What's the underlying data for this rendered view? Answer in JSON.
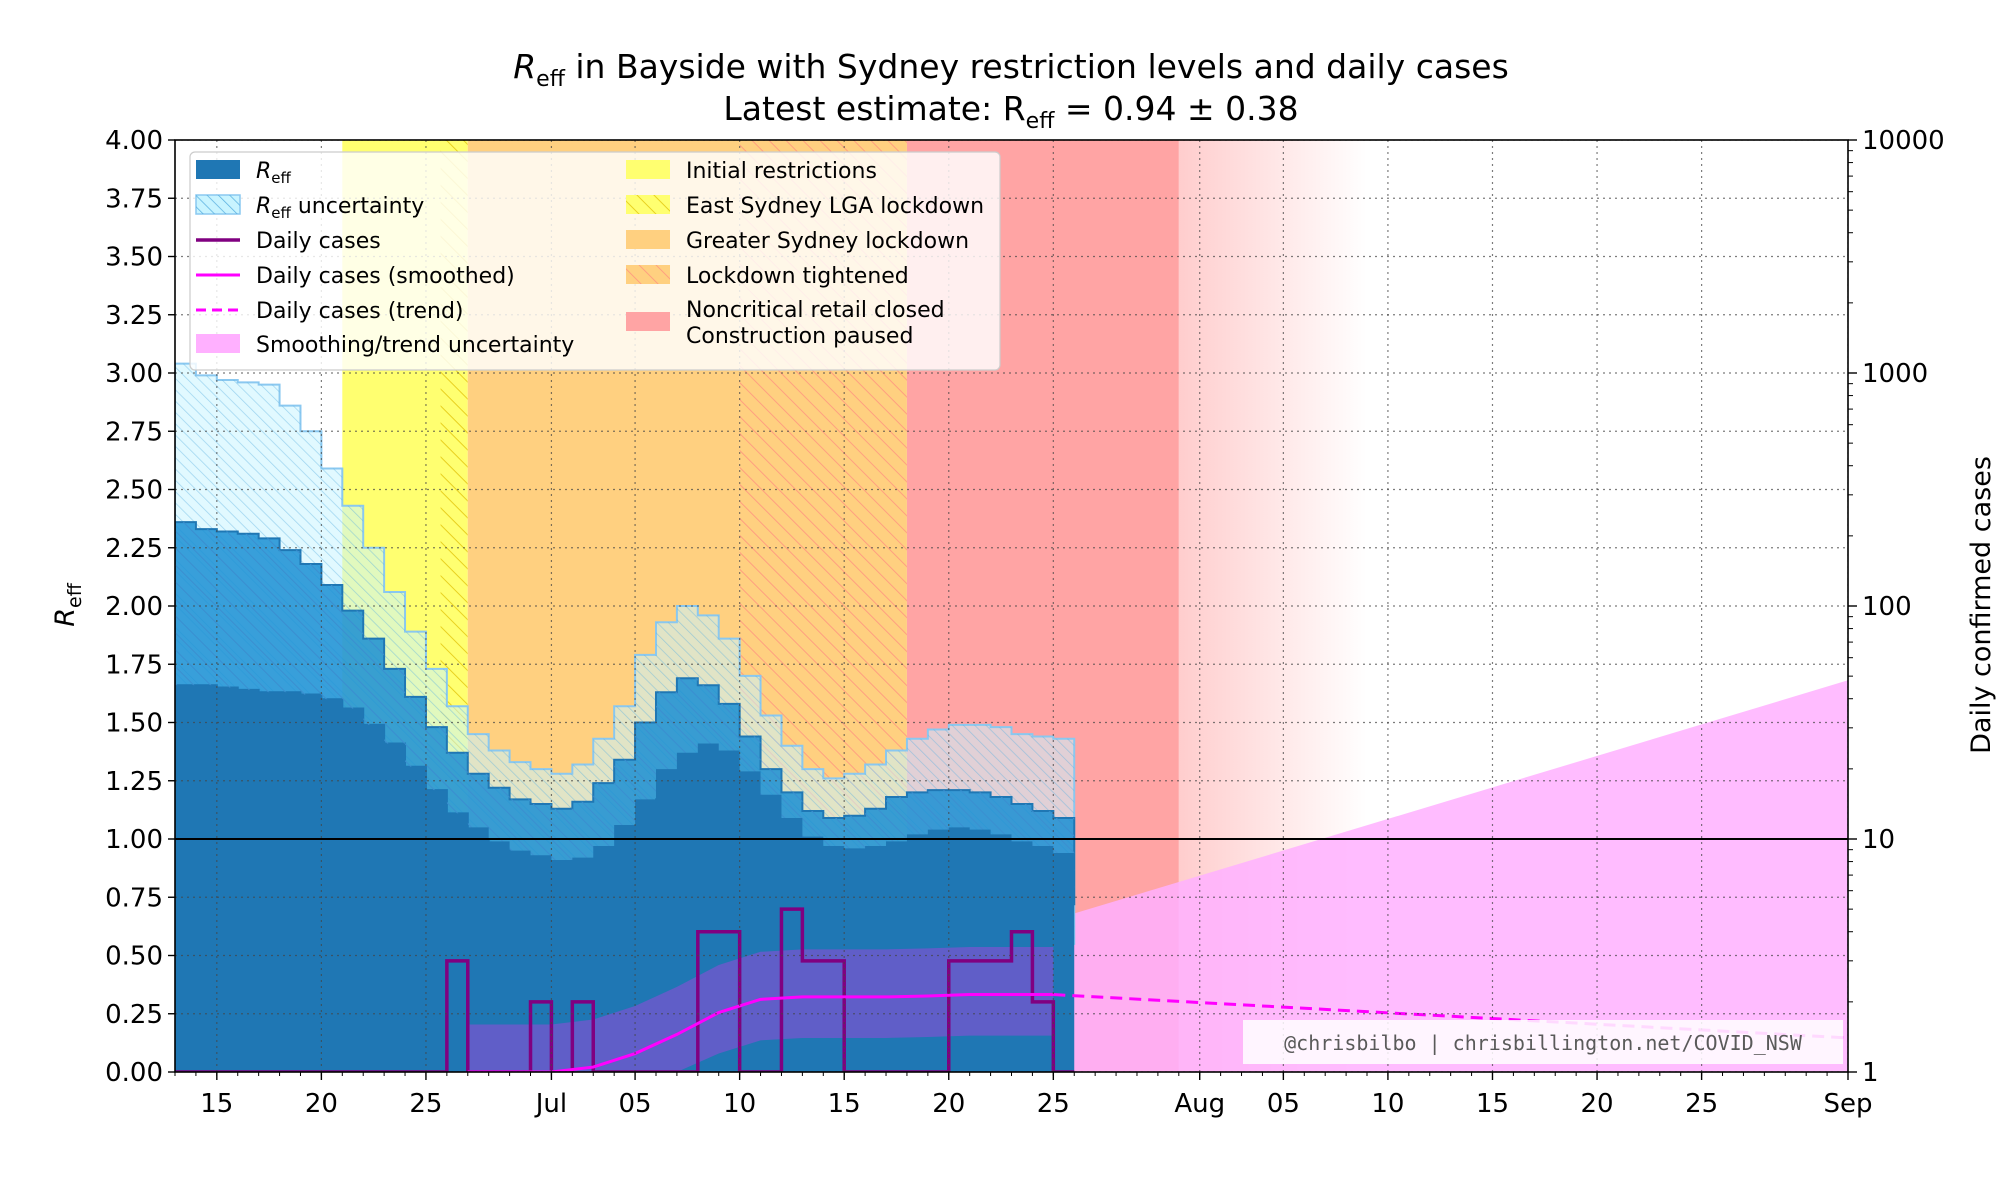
{
  "chart_data": {
    "type": "area",
    "title_line1_pre": "R",
    "title_line1_sub": "eff",
    "title_line1_post": " in Bayside with Sydney restriction levels and daily cases",
    "title_line2_pre": "Latest estimate: R",
    "title_line2_sub": "eff",
    "title_line2_post": " = 0.94 ± 0.38",
    "ylabel_left_main": "R",
    "ylabel_left_sub": "eff",
    "ylabel_right": "Daily confirmed cases",
    "x_start_day": 0,
    "x_end_day": 80,
    "x_ticks": [
      {
        "day": 2,
        "label": "15"
      },
      {
        "day": 7,
        "label": "20"
      },
      {
        "day": 12,
        "label": "25"
      },
      {
        "day": 18,
        "label": "Jul"
      },
      {
        "day": 22,
        "label": "05"
      },
      {
        "day": 27,
        "label": "10"
      },
      {
        "day": 32,
        "label": "15"
      },
      {
        "day": 37,
        "label": "20"
      },
      {
        "day": 42,
        "label": "25"
      },
      {
        "day": 49,
        "label": "Aug"
      },
      {
        "day": 53,
        "label": "05"
      },
      {
        "day": 58,
        "label": "10"
      },
      {
        "day": 63,
        "label": "15"
      },
      {
        "day": 68,
        "label": "20"
      },
      {
        "day": 73,
        "label": "25"
      },
      {
        "day": 80,
        "label": "Sep"
      }
    ],
    "ylim_left": [
      0,
      4
    ],
    "y_ticks_left": [
      "0.00",
      "0.25",
      "0.50",
      "0.75",
      "1.00",
      "1.25",
      "1.50",
      "1.75",
      "2.00",
      "2.25",
      "2.50",
      "2.75",
      "3.00",
      "3.25",
      "3.50",
      "3.75",
      "4.00"
    ],
    "y_ticks_right": [
      "1",
      "10",
      "100",
      "1000",
      "10000"
    ],
    "grid": true,
    "reference_line": 1.0,
    "restriction_periods": [
      {
        "name": "Initial restrictions",
        "start": 8,
        "end": 13.5,
        "color": "#ffff70",
        "hatched": false
      },
      {
        "name": "East Sydney LGA lockdown",
        "start": 12.7,
        "end": 14,
        "color": "#ffff70",
        "hatched": true
      },
      {
        "name": "Greater Sydney lockdown",
        "start": 14,
        "end": 27,
        "color": "#ffd080",
        "hatched": false
      },
      {
        "name": "Lockdown tightened",
        "start": 27,
        "end": 35,
        "color": "#ffd080",
        "hatched": true
      },
      {
        "name": "Noncritical retail closed",
        "start": 35,
        "end": 48,
        "color": "#ffa4a4",
        "hatched": false
      }
    ],
    "restriction_fade": {
      "start": 48,
      "end": 57
    },
    "reff_series": {
      "days": [
        0,
        1,
        2,
        3,
        4,
        5,
        6,
        7,
        8,
        9,
        10,
        11,
        12,
        13,
        14,
        15,
        16,
        17,
        18,
        19,
        20,
        21,
        22,
        23,
        24,
        25,
        26,
        27,
        28,
        29,
        30,
        31,
        32,
        33,
        34,
        35,
        36,
        37,
        38,
        39,
        40,
        41,
        42
      ],
      "mean": [
        1.66,
        1.66,
        1.65,
        1.64,
        1.63,
        1.63,
        1.62,
        1.6,
        1.56,
        1.49,
        1.41,
        1.31,
        1.21,
        1.11,
        1.05,
        0.99,
        0.95,
        0.93,
        0.91,
        0.92,
        0.97,
        1.06,
        1.17,
        1.3,
        1.37,
        1.41,
        1.38,
        1.29,
        1.19,
        1.09,
        1.01,
        0.97,
        0.96,
        0.97,
        0.99,
        1.02,
        1.04,
        1.05,
        1.04,
        1.02,
        0.99,
        0.97,
        0.94
      ],
      "lower_1sd": [
        1.66,
        1.66,
        1.65,
        1.64,
        1.63,
        1.63,
        1.62,
        1.6,
        1.56,
        1.49,
        1.41,
        1.31,
        1.21,
        1.11,
        1.0,
        0.95,
        0.9,
        0.87,
        0.84,
        0.83,
        0.86,
        0.92,
        1.04,
        1.17,
        1.25,
        1.28,
        1.24,
        1.14,
        1.02,
        0.93,
        0.85,
        0.82,
        0.8,
        0.81,
        0.82,
        0.84,
        0.85,
        0.86,
        0.85,
        0.83,
        0.81,
        0.77,
        0.72
      ],
      "upper_1sd": [
        2.36,
        2.33,
        2.32,
        2.31,
        2.29,
        2.24,
        2.18,
        2.09,
        1.98,
        1.86,
        1.73,
        1.61,
        1.48,
        1.37,
        1.28,
        1.22,
        1.17,
        1.15,
        1.13,
        1.16,
        1.24,
        1.34,
        1.5,
        1.63,
        1.69,
        1.66,
        1.58,
        1.44,
        1.3,
        1.2,
        1.12,
        1.09,
        1.1,
        1.13,
        1.18,
        1.2,
        1.21,
        1.21,
        1.2,
        1.18,
        1.15,
        1.12,
        1.09
      ],
      "upper_2sd": [
        3.04,
        2.99,
        2.97,
        2.96,
        2.95,
        2.86,
        2.75,
        2.59,
        2.43,
        2.25,
        2.06,
        1.89,
        1.73,
        1.57,
        1.45,
        1.38,
        1.33,
        1.3,
        1.28,
        1.32,
        1.43,
        1.57,
        1.79,
        1.93,
        2.0,
        1.96,
        1.86,
        1.7,
        1.53,
        1.4,
        1.3,
        1.26,
        1.28,
        1.32,
        1.38,
        1.43,
        1.47,
        1.49,
        1.49,
        1.48,
        1.45,
        1.44,
        1.43
      ],
      "lower_2sd": [
        1.66,
        1.66,
        1.65,
        1.64,
        1.63,
        1.63,
        1.62,
        1.6,
        1.56,
        1.49,
        1.41,
        1.31,
        1.21,
        1.11,
        1.0,
        0.95,
        0.9,
        0.87,
        0.84,
        0.83,
        0.86,
        0.92,
        1.04,
        1.17,
        1.25,
        1.28,
        1.24,
        1.14,
        1.02,
        0.93,
        0.85,
        0.82,
        0.8,
        0.81,
        0.82,
        0.84,
        0.85,
        0.86,
        0.85,
        0.83,
        0.81,
        0.77,
        0.55
      ]
    },
    "daily_cases": {
      "days": [
        0,
        1,
        2,
        3,
        4,
        5,
        6,
        7,
        8,
        9,
        10,
        11,
        12,
        13,
        14,
        15,
        16,
        17,
        18,
        19,
        20,
        21,
        22,
        23,
        24,
        25,
        26,
        27,
        28,
        29,
        30,
        31,
        32,
        33,
        34,
        35,
        36,
        37,
        38,
        39,
        40,
        41,
        42
      ],
      "values": [
        0,
        0,
        0,
        0,
        0,
        0,
        0,
        0,
        0,
        0,
        0,
        0,
        0,
        3,
        0,
        0,
        0,
        2,
        0,
        2,
        0,
        0,
        0,
        0,
        0,
        4,
        4,
        0,
        0,
        5,
        3,
        3,
        0,
        0,
        0,
        0,
        0,
        3,
        3,
        3,
        4,
        2,
        1
      ]
    },
    "smoothed_cases": {
      "days": [
        14,
        16,
        18,
        20,
        22,
        24,
        26,
        28,
        30,
        32,
        34,
        36,
        38,
        40,
        42
      ],
      "values": [
        1.0,
        1.0,
        1.0,
        1.05,
        1.2,
        1.45,
        1.8,
        2.05,
        2.1,
        2.1,
        2.1,
        2.12,
        2.15,
        2.15,
        2.15
      ]
    },
    "trend_cases": {
      "start_day": 42,
      "start_value": 2.15,
      "end_day": 80,
      "end_value": 1.4
    },
    "trend_uncertainty": {
      "lower": [
        [
          42,
          1.0
        ],
        [
          80,
          1.0
        ]
      ],
      "upper": [
        [
          42,
          4.5
        ],
        [
          80,
          48
        ]
      ]
    },
    "colors": {
      "reff": "#1f77b4",
      "reff_uncertainty": "#c8f4ff",
      "daily_cases": "#800080",
      "smoothed": "#ff00ff",
      "trend_uncertainty": "#ffb0ff",
      "initial": "#ffff70",
      "greater_lockdown": "#ffd080",
      "retail": "#ffa4a4"
    },
    "legend": {
      "placement": "top-left",
      "left_entries": [
        {
          "key": "reff",
          "pre": "R",
          "sub": "eff",
          "post": ""
        },
        {
          "key": "reff_unc",
          "pre": "R",
          "sub": "eff",
          "post": " uncertainty"
        },
        {
          "key": "daily",
          "pre": "Daily cases",
          "sub": "",
          "post": ""
        },
        {
          "key": "smoothed",
          "pre": "Daily cases (smoothed)",
          "sub": "",
          "post": ""
        },
        {
          "key": "trend",
          "pre": "Daily cases (trend)",
          "sub": "",
          "post": ""
        },
        {
          "key": "trend_unc",
          "pre": "Smoothing/trend uncertainty",
          "sub": "",
          "post": ""
        }
      ],
      "right_entries": [
        {
          "key": "initial",
          "lines": [
            "Initial restrictions"
          ]
        },
        {
          "key": "east",
          "lines": [
            "East Sydney LGA lockdown"
          ]
        },
        {
          "key": "greater",
          "lines": [
            "Greater Sydney lockdown"
          ]
        },
        {
          "key": "tightened",
          "lines": [
            "Lockdown tightened"
          ]
        },
        {
          "key": "retail",
          "lines": [
            "Noncritical retail closed",
            "Construction paused"
          ]
        }
      ]
    },
    "watermark": "@chrisbilbo | chrisbillington.net/COVID_NSW"
  }
}
